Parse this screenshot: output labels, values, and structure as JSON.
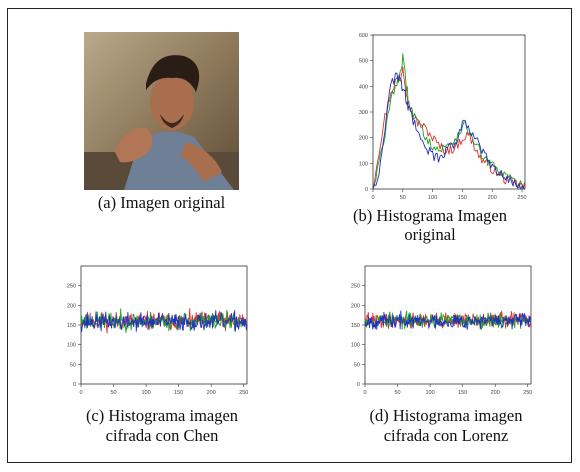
{
  "captions": {
    "a": "(a) Imagen original",
    "b_line1": "(b) Histograma Imagen",
    "b_line2": "original",
    "c_line1": "(c) Histograma imagen",
    "c_line2": "cifrada con Chen",
    "d_line1": "(d) Histograma imagen",
    "d_line2": "cifrada con Lorenz"
  },
  "photo": {
    "description_icon": "portrait-photo"
  },
  "chart_data": [
    {
      "type": "line",
      "title": "",
      "xlabel": "",
      "ylabel": "",
      "xlim": [
        0,
        255
      ],
      "ylim": [
        0,
        600
      ],
      "xticks": [
        "0",
        "50",
        "100",
        "150",
        "200",
        "250"
      ],
      "yticks": [
        "0",
        "100",
        "200",
        "300",
        "400",
        "500",
        "600"
      ],
      "grid": false,
      "series": [
        {
          "color": "#e03030",
          "x": [
            0,
            10,
            20,
            30,
            40,
            45,
            50,
            55,
            60,
            70,
            80,
            90,
            100,
            110,
            120,
            130,
            140,
            150,
            160,
            170,
            180,
            190,
            200,
            210,
            220,
            230,
            240,
            250,
            255
          ],
          "values": [
            10,
            150,
            280,
            380,
            430,
            420,
            480,
            400,
            330,
            270,
            250,
            230,
            200,
            170,
            150,
            155,
            165,
            200,
            210,
            170,
            120,
            100,
            80,
            60,
            40,
            30,
            20,
            10,
            5
          ]
        },
        {
          "color": "#20a020",
          "x": [
            0,
            10,
            20,
            30,
            40,
            45,
            50,
            55,
            60,
            70,
            80,
            90,
            100,
            110,
            120,
            130,
            140,
            150,
            160,
            170,
            180,
            190,
            200,
            210,
            220,
            230,
            240,
            250,
            255
          ],
          "values": [
            5,
            100,
            200,
            370,
            400,
            450,
            510,
            420,
            340,
            280,
            240,
            200,
            170,
            150,
            160,
            180,
            200,
            250,
            230,
            190,
            140,
            110,
            90,
            70,
            55,
            40,
            25,
            12,
            5
          ]
        },
        {
          "color": "#2030c0",
          "x": [
            0,
            10,
            20,
            30,
            40,
            45,
            50,
            55,
            60,
            70,
            80,
            90,
            100,
            110,
            120,
            130,
            140,
            150,
            160,
            170,
            180,
            190,
            200,
            210,
            220,
            230,
            240,
            250,
            255
          ],
          "values": [
            5,
            60,
            240,
            400,
            450,
            430,
            390,
            360,
            310,
            250,
            200,
            160,
            130,
            120,
            140,
            170,
            180,
            270,
            240,
            210,
            160,
            120,
            85,
            60,
            45,
            35,
            20,
            10,
            5
          ]
        }
      ]
    },
    {
      "type": "line",
      "title": "",
      "xlim": [
        0,
        255
      ],
      "ylim": [
        0,
        300
      ],
      "xticks": [
        "0",
        "50",
        "100",
        "150",
        "200",
        "250"
      ],
      "yticks": [
        "0",
        "50",
        "100",
        "150",
        "200",
        "250"
      ],
      "grid": false,
      "series": [
        {
          "color": "#e03030",
          "mean": 160,
          "spread": 14,
          "seed": 11,
          "count": 256
        },
        {
          "color": "#20a020",
          "mean": 160,
          "spread": 14,
          "seed": 23,
          "count": 256
        },
        {
          "color": "#2030c0",
          "mean": 158,
          "spread": 14,
          "seed": 37,
          "count": 256
        }
      ]
    },
    {
      "type": "line",
      "title": "",
      "xlim": [
        0,
        255
      ],
      "ylim": [
        0,
        300
      ],
      "xticks": [
        "0",
        "50",
        "100",
        "150",
        "200",
        "250"
      ],
      "yticks": [
        "0",
        "50",
        "100",
        "150",
        "200",
        "250"
      ],
      "grid": false,
      "series": [
        {
          "color": "#e03030",
          "mean": 162,
          "spread": 12,
          "seed": 41,
          "count": 256
        },
        {
          "color": "#20a020",
          "mean": 162,
          "spread": 12,
          "seed": 53,
          "count": 256
        },
        {
          "color": "#2030c0",
          "mean": 160,
          "spread": 12,
          "seed": 67,
          "count": 256
        }
      ]
    }
  ]
}
